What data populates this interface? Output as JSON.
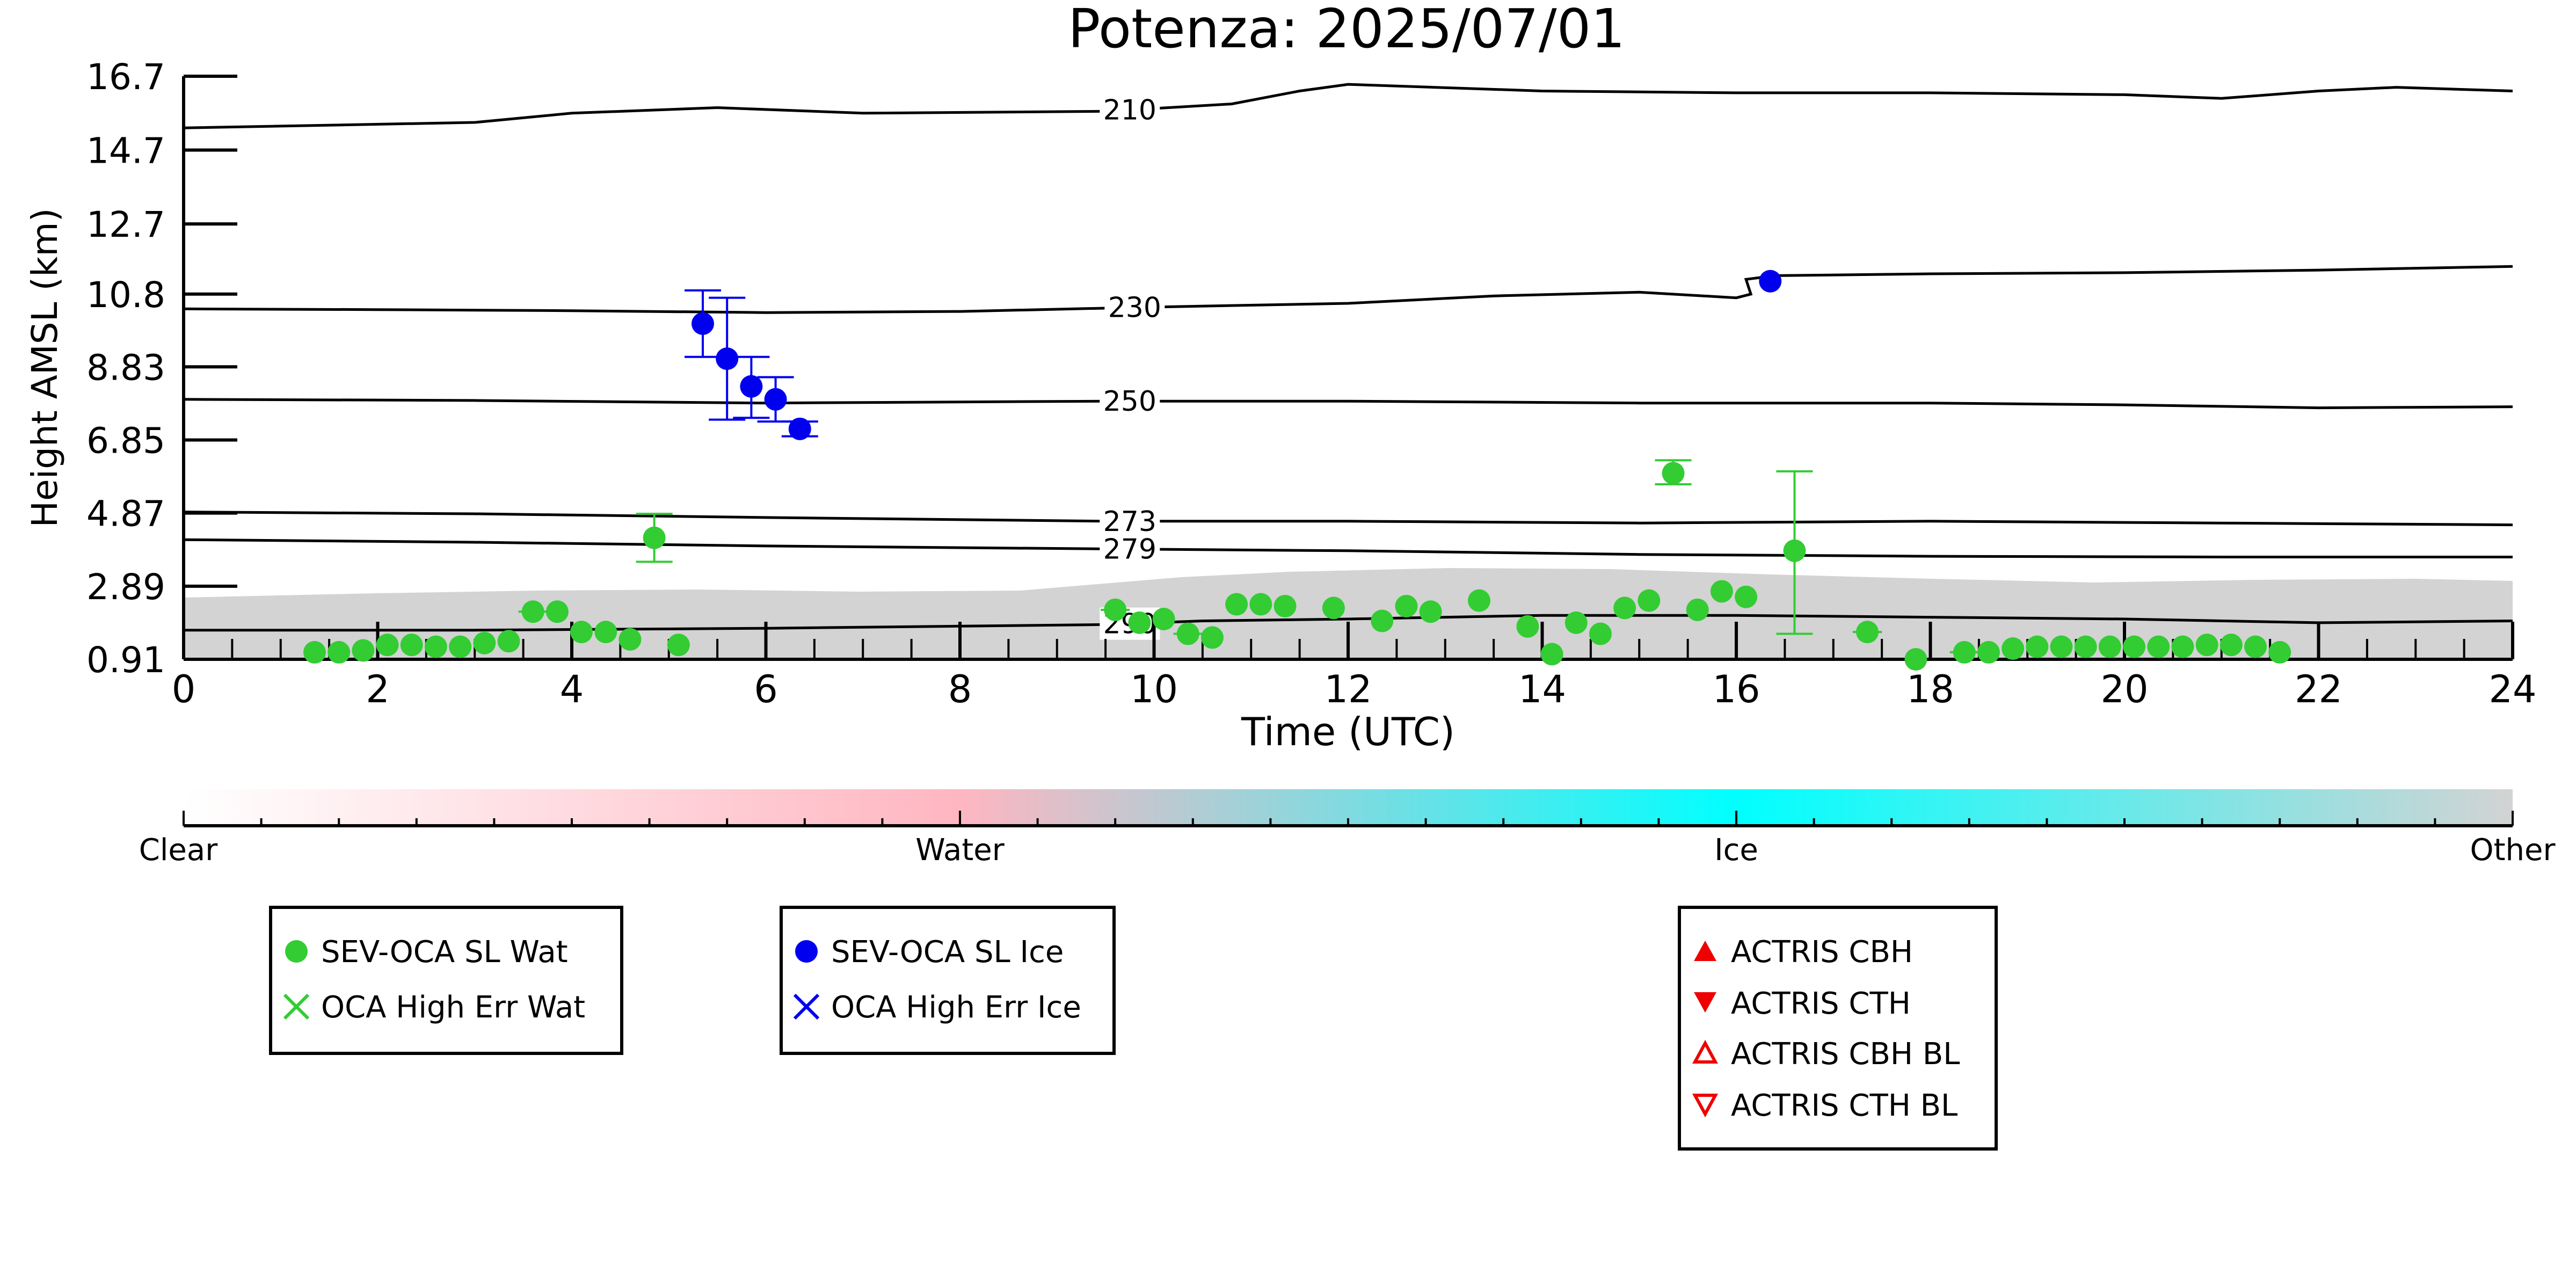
{
  "chart_data": {
    "type": "scatter",
    "title": "Potenza: 2025/07/01",
    "xlabel": "Time (UTC)",
    "ylabel": "Height AMSL (km)",
    "xlim": [
      0,
      24
    ],
    "ylim": [
      0.91,
      16.7
    ],
    "x_ticks": [
      0,
      2,
      4,
      6,
      8,
      10,
      12,
      14,
      16,
      18,
      20,
      22,
      24
    ],
    "y_ticks": [
      "0.91",
      "2.89",
      "4.87",
      "6.85",
      "8.83",
      "10.8",
      "12.7",
      "14.7",
      "16.7"
    ],
    "grid": false,
    "colorbar": {
      "labels": [
        "Clear",
        "Water",
        "Ice",
        "Other"
      ],
      "colors": [
        "#ffffff",
        "#ffb6c1",
        "#00ffff",
        "#d3d3d3"
      ]
    },
    "contours": [
      {
        "label": "210",
        "label_x": 9.75,
        "points": [
          [
            0,
            15.3
          ],
          [
            3,
            15.45
          ],
          [
            4,
            15.7
          ],
          [
            5.5,
            15.85
          ],
          [
            7,
            15.7
          ],
          [
            9.5,
            15.75
          ],
          [
            10.8,
            15.95
          ],
          [
            11.5,
            16.3
          ],
          [
            12,
            16.48
          ],
          [
            14,
            16.3
          ],
          [
            16,
            16.25
          ],
          [
            18,
            16.25
          ],
          [
            20,
            16.2
          ],
          [
            21,
            16.1
          ],
          [
            22,
            16.3
          ],
          [
            22.8,
            16.4
          ],
          [
            24,
            16.3
          ]
        ]
      },
      {
        "label": "230",
        "label_x": 9.8,
        "points": [
          [
            0,
            10.4
          ],
          [
            2,
            10.38
          ],
          [
            4,
            10.35
          ],
          [
            6,
            10.3
          ],
          [
            8,
            10.33
          ],
          [
            10,
            10.45
          ],
          [
            12,
            10.55
          ],
          [
            13.5,
            10.75
          ],
          [
            15,
            10.85
          ],
          [
            16,
            10.7
          ],
          [
            16.15,
            10.8
          ],
          [
            16.1,
            11.2
          ],
          [
            16.4,
            11.3
          ],
          [
            18,
            11.35
          ],
          [
            20,
            11.38
          ],
          [
            22,
            11.45
          ],
          [
            24,
            11.55
          ]
        ]
      },
      {
        "label": "250",
        "label_x": 9.75,
        "points": [
          [
            0,
            7.95
          ],
          [
            3,
            7.92
          ],
          [
            6,
            7.85
          ],
          [
            9.5,
            7.9
          ],
          [
            12,
            7.9
          ],
          [
            15,
            7.85
          ],
          [
            18,
            7.85
          ],
          [
            20,
            7.8
          ],
          [
            22,
            7.72
          ],
          [
            24,
            7.75
          ]
        ]
      },
      {
        "label": "273",
        "label_x": 9.75,
        "points": [
          [
            0,
            4.9
          ],
          [
            3,
            4.85
          ],
          [
            6,
            4.75
          ],
          [
            9.5,
            4.65
          ],
          [
            12,
            4.65
          ],
          [
            15,
            4.6
          ],
          [
            18,
            4.65
          ],
          [
            21,
            4.6
          ],
          [
            24,
            4.55
          ]
        ]
      },
      {
        "label": "279",
        "label_x": 9.75,
        "points": [
          [
            0,
            4.15
          ],
          [
            3,
            4.08
          ],
          [
            6,
            3.98
          ],
          [
            9.5,
            3.9
          ],
          [
            12,
            3.85
          ],
          [
            15,
            3.75
          ],
          [
            18,
            3.7
          ],
          [
            21,
            3.68
          ],
          [
            24,
            3.68
          ]
        ]
      },
      {
        "label": "290",
        "label_x": 9.75,
        "points": [
          [
            0,
            1.7
          ],
          [
            3,
            1.7
          ],
          [
            6,
            1.75
          ],
          [
            9.5,
            1.85
          ],
          [
            10.5,
            1.95
          ],
          [
            12,
            2.0
          ],
          [
            14,
            2.1
          ],
          [
            16,
            2.1
          ],
          [
            18,
            2.05
          ],
          [
            20,
            2.0
          ],
          [
            22,
            1.9
          ],
          [
            24,
            1.95
          ]
        ]
      }
    ],
    "series": [
      {
        "name": "SEV-OCA SL Wat",
        "color": "#33cc33",
        "points": [
          {
            "x": 1.35,
            "y": 1.1
          },
          {
            "x": 1.6,
            "y": 1.1
          },
          {
            "x": 1.85,
            "y": 1.15
          },
          {
            "x": 2.1,
            "y": 1.3
          },
          {
            "x": 2.35,
            "y": 1.3
          },
          {
            "x": 2.6,
            "y": 1.25
          },
          {
            "x": 2.85,
            "y": 1.25
          },
          {
            "x": 3.1,
            "y": 1.35
          },
          {
            "x": 3.35,
            "y": 1.4
          },
          {
            "x": 3.6,
            "y": 2.2,
            "xerr": 0.15
          },
          {
            "x": 3.85,
            "y": 2.2
          },
          {
            "x": 4.1,
            "y": 1.65
          },
          {
            "x": 4.35,
            "y": 1.65
          },
          {
            "x": 4.6,
            "y": 1.45
          },
          {
            "x": 4.85,
            "y": 4.2,
            "yerr_lo": 3.55,
            "yerr_hi": 4.85
          },
          {
            "x": 5.1,
            "y": 1.3
          },
          {
            "x": 9.6,
            "y": 2.25,
            "xerr": 0.15
          },
          {
            "x": 9.85,
            "y": 1.9
          },
          {
            "x": 10.1,
            "y": 2.0
          },
          {
            "x": 10.35,
            "y": 1.6,
            "xerr": 0.15
          },
          {
            "x": 10.6,
            "y": 1.5
          },
          {
            "x": 10.85,
            "y": 2.4
          },
          {
            "x": 11.1,
            "y": 2.4
          },
          {
            "x": 11.35,
            "y": 2.35
          },
          {
            "x": 11.85,
            "y": 2.3
          },
          {
            "x": 12.35,
            "y": 1.95
          },
          {
            "x": 12.6,
            "y": 2.35
          },
          {
            "x": 12.85,
            "y": 2.2
          },
          {
            "x": 13.35,
            "y": 2.5
          },
          {
            "x": 13.85,
            "y": 1.8
          },
          {
            "x": 14.1,
            "y": 1.05
          },
          {
            "x": 14.35,
            "y": 1.9
          },
          {
            "x": 14.6,
            "y": 1.6
          },
          {
            "x": 14.85,
            "y": 2.3
          },
          {
            "x": 15.1,
            "y": 2.5
          },
          {
            "x": 15.35,
            "y": 5.95,
            "yerr_lo": 5.65,
            "yerr_hi": 6.3
          },
          {
            "x": 15.6,
            "y": 2.25
          },
          {
            "x": 15.85,
            "y": 2.75
          },
          {
            "x": 16.1,
            "y": 2.6
          },
          {
            "x": 16.6,
            "y": 3.85,
            "yerr_lo": 1.6,
            "yerr_hi": 6.0
          },
          {
            "x": 17.35,
            "y": 1.65,
            "xerr": 0.15
          },
          {
            "x": 17.85,
            "y": 0.91
          },
          {
            "x": 18.35,
            "y": 1.1,
            "xerr": 0.15
          },
          {
            "x": 18.6,
            "y": 1.1
          },
          {
            "x": 18.85,
            "y": 1.2
          },
          {
            "x": 19.1,
            "y": 1.25
          },
          {
            "x": 19.35,
            "y": 1.25
          },
          {
            "x": 19.6,
            "y": 1.25
          },
          {
            "x": 19.85,
            "y": 1.25
          },
          {
            "x": 20.1,
            "y": 1.25
          },
          {
            "x": 20.35,
            "y": 1.25
          },
          {
            "x": 20.6,
            "y": 1.25
          },
          {
            "x": 20.85,
            "y": 1.3
          },
          {
            "x": 21.1,
            "y": 1.3
          },
          {
            "x": 21.35,
            "y": 1.25
          },
          {
            "x": 21.6,
            "y": 1.1
          }
        ]
      },
      {
        "name": "SEV-OCA SL Ice",
        "color": "#0000ee",
        "points": [
          {
            "x": 5.35,
            "y": 10.0,
            "yerr_lo": 9.1,
            "yerr_hi": 10.9
          },
          {
            "x": 5.6,
            "y": 9.05,
            "yerr_lo": 7.4,
            "yerr_hi": 10.7
          },
          {
            "x": 5.85,
            "y": 8.3,
            "yerr_lo": 7.45,
            "yerr_hi": 9.1
          },
          {
            "x": 6.1,
            "y": 7.95,
            "yerr_lo": 7.35,
            "yerr_hi": 8.55
          },
          {
            "x": 6.35,
            "y": 7.15,
            "yerr_lo": 6.95,
            "yerr_hi": 7.35
          },
          {
            "x": 16.35,
            "y": 11.15
          }
        ]
      }
    ],
    "legends": [
      {
        "items": [
          {
            "label": "SEV-OCA SL Wat",
            "marker": "circle",
            "color": "#33cc33"
          },
          {
            "label": "OCA High Err Wat",
            "marker": "x",
            "color": "#33cc33"
          }
        ]
      },
      {
        "items": [
          {
            "label": "SEV-OCA SL Ice",
            "marker": "circle",
            "color": "#0000ee"
          },
          {
            "label": "OCA High Err Ice",
            "marker": "x",
            "color": "#0000ee"
          }
        ]
      },
      {
        "items": [
          {
            "label": "ACTRIS CBH",
            "marker": "triangle-up",
            "color": "#ee0000"
          },
          {
            "label": "ACTRIS CTH",
            "marker": "triangle-down",
            "color": "#ee0000"
          },
          {
            "label": "ACTRIS CBH BL",
            "marker": "triangle-up-open",
            "color": "#ee0000"
          },
          {
            "label": "ACTRIS CTH BL",
            "marker": "triangle-down-open",
            "color": "#ee0000"
          }
        ]
      }
    ]
  }
}
